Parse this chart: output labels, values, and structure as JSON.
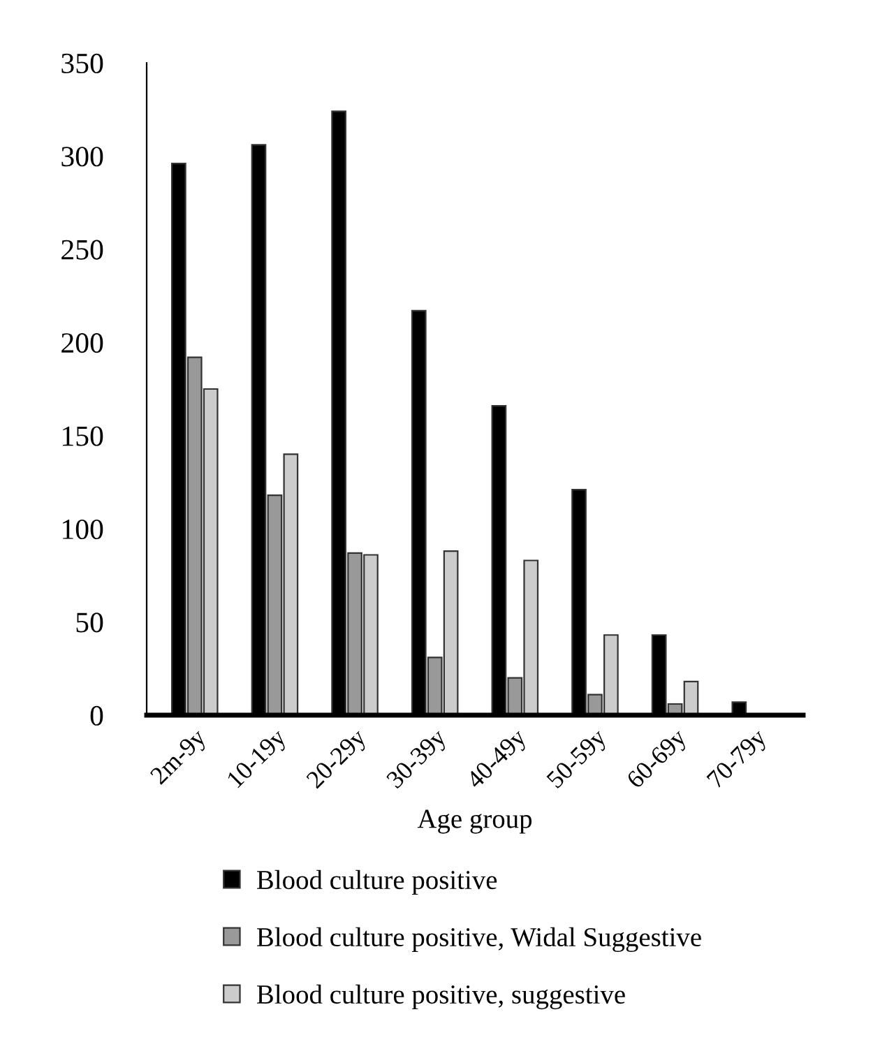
{
  "chart_data": {
    "type": "bar",
    "xlabel": "Age group",
    "categories": [
      "2m-9y",
      "10-19y",
      "20-29y",
      "30-39y",
      "40-49y",
      "50-59y",
      "60-69y",
      "70-79y"
    ],
    "series": [
      {
        "name": "Blood culture positive",
        "color": "#000000",
        "values": [
          296,
          306,
          324,
          217,
          166,
          121,
          43,
          7
        ]
      },
      {
        "name": "Blood culture positive, Widal Suggestive",
        "color": "#999999",
        "values": [
          192,
          118,
          87,
          31,
          20,
          11,
          6,
          null
        ]
      },
      {
        "name": "Blood culture positive, suggestive",
        "color": "#cccccc",
        "values": [
          175,
          140,
          86,
          88,
          83,
          43,
          18,
          null
        ]
      }
    ],
    "ylim": [
      0,
      350
    ],
    "yticks": [
      0,
      50,
      100,
      150,
      200,
      250,
      300,
      350
    ],
    "grid": false,
    "legend": "bottom"
  }
}
